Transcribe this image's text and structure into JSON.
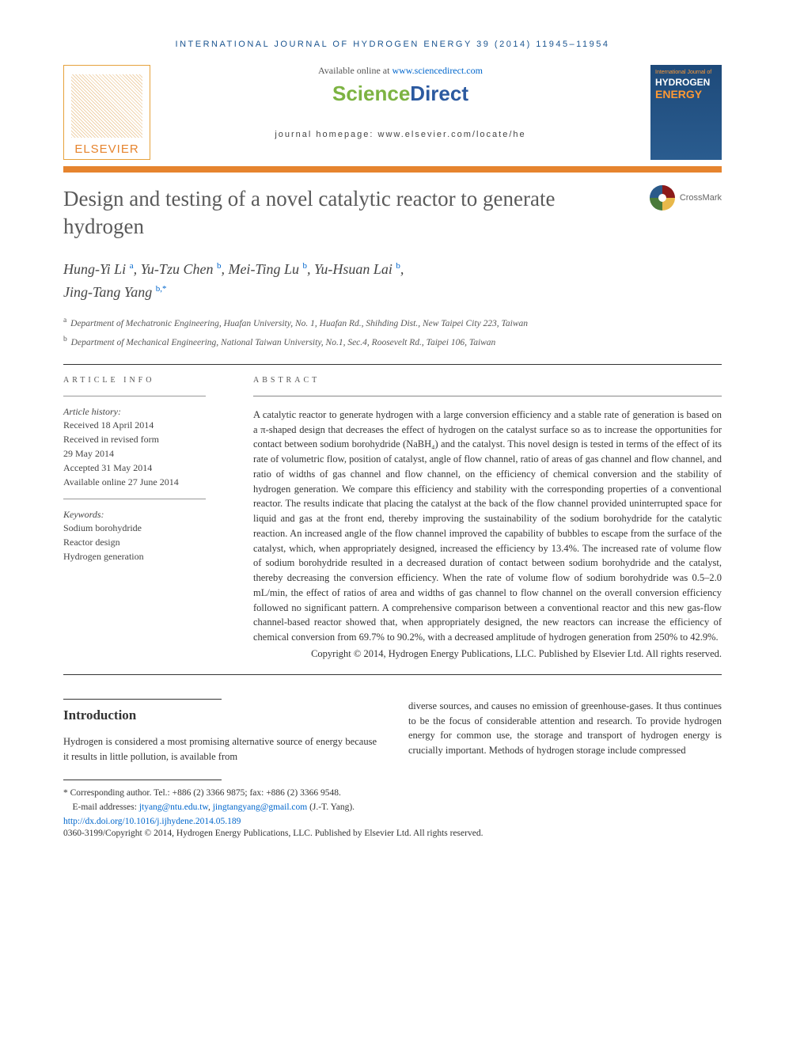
{
  "header": {
    "citation": "INTERNATIONAL JOURNAL OF HYDROGEN ENERGY 39 (2014) 11945–11954",
    "available_text": "Available online at ",
    "available_url": "www.sciencedirect.com",
    "sciencedirect_sci": "Science",
    "sciencedirect_dir": "Direct",
    "homepage_text": "journal homepage: www.elsevier.com/locate/he",
    "elsevier_label": "ELSEVIER",
    "cover_small": "International Journal of",
    "cover_hydrogen": "HYDROGEN",
    "cover_energy": "ENERGY",
    "crossmark_label": "CrossMark"
  },
  "article": {
    "title": "Design and testing of a novel catalytic reactor to generate hydrogen",
    "authors_html": "Hung-Yi Li|a|, Yu-Tzu Chen|b|, Mei-Ting Lu|b|, Yu-Hsuan Lai|b|, Jing-Tang Yang|b,*",
    "authors": [
      {
        "name": "Hung-Yi Li",
        "aff": "a"
      },
      {
        "name": "Yu-Tzu Chen",
        "aff": "b"
      },
      {
        "name": "Mei-Ting Lu",
        "aff": "b"
      },
      {
        "name": "Yu-Hsuan Lai",
        "aff": "b"
      },
      {
        "name": "Jing-Tang Yang",
        "aff": "b,*"
      }
    ],
    "affiliations": {
      "a": "Department of Mechatronic Engineering, Huafan University, No. 1, Huafan Rd., Shihding Dist., New Taipei City 223, Taiwan",
      "b": "Department of Mechanical Engineering, National Taiwan University, No.1, Sec.4, Roosevelt Rd., Taipei 106, Taiwan"
    }
  },
  "info": {
    "heading": "ARTICLE INFO",
    "history_label": "Article history:",
    "history": [
      "Received 18 April 2014",
      "Received in revised form",
      "29 May 2014",
      "Accepted 31 May 2014",
      "Available online 27 June 2014"
    ],
    "keywords_label": "Keywords:",
    "keywords": [
      "Sodium borohydride",
      "Reactor design",
      "Hydrogen generation"
    ]
  },
  "abstract": {
    "heading": "ABSTRACT",
    "text": "A catalytic reactor to generate hydrogen with a large conversion efficiency and a stable rate of generation is based on a π-shaped design that decreases the effect of hydrogen on the catalyst surface so as to increase the opportunities for contact between sodium borohydride (NaBH₄) and the catalyst. This novel design is tested in terms of the effect of its rate of volumetric flow, position of catalyst, angle of flow channel, ratio of areas of gas channel and flow channel, and ratio of widths of gas channel and flow channel, on the efficiency of chemical conversion and the stability of hydrogen generation. We compare this efficiency and stability with the corresponding properties of a conventional reactor. The results indicate that placing the catalyst at the back of the flow channel provided uninterrupted space for liquid and gas at the front end, thereby improving the sustainability of the sodium borohydride for the catalytic reaction. An increased angle of the flow channel improved the capability of bubbles to escape from the surface of the catalyst, which, when appropriately designed, increased the efficiency by 13.4%. The increased rate of volume flow of sodium borohydride resulted in a decreased duration of contact between sodium borohydride and the catalyst, thereby decreasing the conversion efficiency. When the rate of volume flow of sodium borohydride was 0.5–2.0 mL/min, the effect of ratios of area and widths of gas channel to flow channel on the overall conversion efficiency followed no significant pattern. A comprehensive comparison between a conventional reactor and this new gas-flow channel-based reactor showed that, when appropriately designed, the new reactors can increase the efficiency of chemical conversion from 69.7% to 90.2%, with a decreased amplitude of hydrogen generation from 250% to 42.9%.",
    "copyright": "Copyright © 2014, Hydrogen Energy Publications, LLC. Published by Elsevier Ltd. All rights reserved."
  },
  "introduction": {
    "heading": "Introduction",
    "col1": "Hydrogen is considered a most promising alternative source of energy because it results in little pollution, is available from",
    "col2": "diverse sources, and causes no emission of greenhouse-gases. It thus continues to be the focus of considerable attention and research. To provide hydrogen energy for common use, the storage and transport of hydrogen energy is crucially important. Methods of hydrogen storage include compressed"
  },
  "footer": {
    "corresponding": "* Corresponding author. Tel.: +886 (2) 3366 9875; fax: +886 (2) 3366 9548.",
    "email_label": "E-mail addresses: ",
    "email1": "jtyang@ntu.edu.tw",
    "email2": "jingtangyang@gmail.com",
    "email_suffix": " (J.-T. Yang).",
    "doi": "http://dx.doi.org/10.1016/j.ijhydene.2014.05.189",
    "issn_copyright": "0360-3199/Copyright © 2014, Hydrogen Energy Publications, LLC. Published by Elsevier Ltd. All rights reserved."
  },
  "colors": {
    "orange": "#e6842e",
    "link_blue": "#0066cc",
    "header_blue": "#1a5490",
    "sd_green": "#7cb342",
    "sd_blue": "#2c5aa0",
    "text": "#333333"
  }
}
